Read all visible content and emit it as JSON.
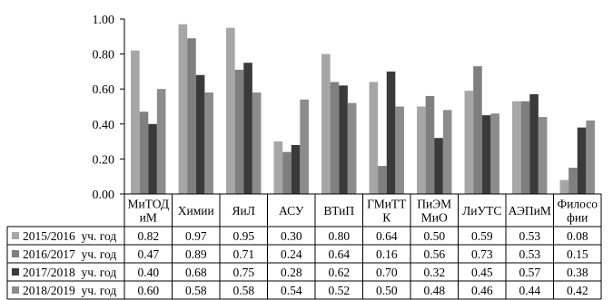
{
  "chart_data": {
    "type": "bar",
    "title": "",
    "xlabel": "",
    "ylabel": "",
    "ylim": [
      0,
      1.0
    ],
    "yticks": [
      "0.00",
      "0.20",
      "0.40",
      "0.60",
      "0.80",
      "1.00"
    ],
    "grid": false,
    "legend": "data-table",
    "categories": [
      [
        "МиТОД",
        "иМ"
      ],
      [
        "Химии"
      ],
      [
        "ЯиЛ"
      ],
      [
        "АСУ"
      ],
      [
        "ВТиП"
      ],
      [
        "ГМиТТ",
        "К"
      ],
      [
        "ПиЭМ",
        "МиО"
      ],
      [
        "ЛиУТС"
      ],
      [
        "АЭПиМ"
      ],
      [
        "Филосо",
        "фии"
      ]
    ],
    "series": [
      {
        "name": "2015/2016  уч. год",
        "color": "#a6a6a6",
        "values": [
          0.82,
          0.97,
          0.95,
          0.3,
          0.8,
          0.64,
          0.5,
          0.59,
          0.53,
          0.08
        ],
        "labels": [
          "0.82",
          "0.97",
          "0.95",
          "0.30",
          "0.80",
          "0.64",
          "0.50",
          "0.59",
          "0.53",
          "0.08"
        ]
      },
      {
        "name": "2016/2017  уч. год",
        "color": "#7f7f7f",
        "values": [
          0.47,
          0.89,
          0.71,
          0.24,
          0.64,
          0.16,
          0.56,
          0.73,
          0.53,
          0.15
        ],
        "labels": [
          "0.47",
          "0.89",
          "0.71",
          "0.24",
          "0.64",
          "0.16",
          "0.56",
          "0.73",
          "0.53",
          "0.15"
        ]
      },
      {
        "name": "2017/2018  уч. год",
        "color": "#3a3a3a",
        "values": [
          0.4,
          0.68,
          0.75,
          0.28,
          0.62,
          0.7,
          0.32,
          0.45,
          0.57,
          0.38
        ],
        "labels": [
          "0.40",
          "0.68",
          "0.75",
          "0.28",
          "0.62",
          "0.70",
          "0.32",
          "0.45",
          "0.57",
          "0.38"
        ]
      },
      {
        "name": "2018/2019  уч. год",
        "color": "#8c8c8c",
        "values": [
          0.6,
          0.58,
          0.58,
          0.54,
          0.52,
          0.5,
          0.48,
          0.46,
          0.44,
          0.42
        ],
        "labels": [
          "0.60",
          "0.58",
          "0.58",
          "0.54",
          "0.52",
          "0.50",
          "0.48",
          "0.46",
          "0.44",
          "0.42"
        ]
      }
    ]
  }
}
